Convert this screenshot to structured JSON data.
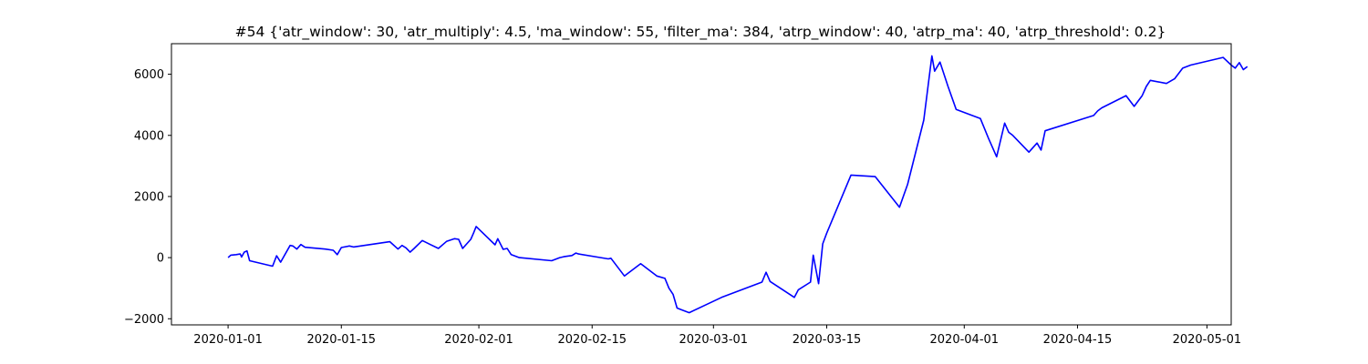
{
  "chart_data": {
    "type": "line",
    "title": "#54 {'atr_window': 30, 'atr_multiply': 4.5, 'ma_window': 55, 'filter_ma': 384, 'atrp_window': 40, 'atrp_ma': 40, 'atrp_threshold': 0.2}",
    "xlabel": "",
    "ylabel": "",
    "grid": false,
    "legend": "none",
    "xlim": [
      "2019-12-25",
      "2020-05-04"
    ],
    "ylim": [
      -2200,
      7000
    ],
    "x_ticks": [
      {
        "value": "2020-01-01",
        "label": "2020-01-01"
      },
      {
        "value": "2020-01-15",
        "label": "2020-01-15"
      },
      {
        "value": "2020-02-01",
        "label": "2020-02-01"
      },
      {
        "value": "2020-02-15",
        "label": "2020-02-15"
      },
      {
        "value": "2020-03-01",
        "label": "2020-03-01"
      },
      {
        "value": "2020-03-15",
        "label": "2020-03-15"
      },
      {
        "value": "2020-04-01",
        "label": "2020-04-01"
      },
      {
        "value": "2020-04-15",
        "label": "2020-04-15"
      },
      {
        "value": "2020-05-01",
        "label": "2020-05-01"
      }
    ],
    "y_ticks": [
      {
        "value": -2000,
        "label": "−2000"
      },
      {
        "value": 0,
        "label": "0"
      },
      {
        "value": 2000,
        "label": "2000"
      },
      {
        "value": 4000,
        "label": "4000"
      },
      {
        "value": 6000,
        "label": "6000"
      }
    ],
    "series": [
      {
        "color": "#0000ff",
        "x": [
          "2020-01-01",
          "2020-01-01T08:00",
          "2020-01-02",
          "2020-01-02T12:00",
          "2020-01-02T16:00",
          "2020-01-03",
          "2020-01-03T08:00",
          "2020-01-03T16:00",
          "2020-01-06T12:00",
          "2020-01-07",
          "2020-01-07T12:00",
          "2020-01-08T16:00",
          "2020-01-09",
          "2020-01-09T12:00",
          "2020-01-10",
          "2020-01-10T12:00",
          "2020-01-13",
          "2020-01-14",
          "2020-01-14T12:00",
          "2020-01-15",
          "2020-01-16",
          "2020-01-16T12:00",
          "2020-01-21",
          "2020-01-22",
          "2020-01-22T12:00",
          "2020-01-23",
          "2020-01-23T12:00",
          "2020-01-24",
          "2020-01-25",
          "2020-01-26",
          "2020-01-27",
          "2020-01-28",
          "2020-01-29",
          "2020-01-29T12:00",
          "2020-01-30",
          "2020-01-31",
          "2020-01-31T08:00",
          "2020-01-31T16:00",
          "2020-02-03",
          "2020-02-03T08:00",
          "2020-02-04",
          "2020-02-04T12:00",
          "2020-02-05",
          "2020-02-06",
          "2020-02-10",
          "2020-02-11",
          "2020-02-11T12:00",
          "2020-02-12",
          "2020-02-12T12:00",
          "2020-02-13",
          "2020-02-13T08:00",
          "2020-02-17",
          "2020-02-17T08:00",
          "2020-02-19",
          "2020-02-21",
          "2020-02-23",
          "2020-02-24",
          "2020-02-24T12:00",
          "2020-02-25",
          "2020-02-25T12:00",
          "2020-02-26",
          "2020-02-27",
          "2020-03-02",
          "2020-03-07",
          "2020-03-07T12:00",
          "2020-03-08",
          "2020-03-11",
          "2020-03-11T12:00",
          "2020-03-13",
          "2020-03-13T08:00",
          "2020-03-14",
          "2020-03-14T12:00",
          "2020-03-15",
          "2020-03-18",
          "2020-03-21",
          "2020-03-24",
          "2020-03-25",
          "2020-03-27",
          "2020-03-28",
          "2020-03-28T08:00",
          "2020-03-29",
          "2020-03-30",
          "2020-03-31",
          "2020-04-03",
          "2020-04-04",
          "2020-04-05",
          "2020-04-06",
          "2020-04-06T12:00",
          "2020-04-07",
          "2020-04-09",
          "2020-04-10",
          "2020-04-10T12:00",
          "2020-04-11",
          "2020-04-17",
          "2020-04-17T12:00",
          "2020-04-18",
          "2020-04-21",
          "2020-04-22",
          "2020-04-23",
          "2020-04-23T12:00",
          "2020-04-24",
          "2020-04-26",
          "2020-04-27",
          "2020-04-28",
          "2020-04-29",
          "2020-05-03",
          "2020-05-04",
          "2020-05-04T12:00",
          "2020-05-05",
          "2020-05-05T12:00",
          "2020-05-06"
        ],
        "y": [
          0,
          80,
          100,
          120,
          20,
          180,
          220,
          -100,
          -280,
          60,
          -150,
          400,
          380,
          280,
          430,
          340,
          280,
          240,
          100,
          330,
          380,
          350,
          520,
          280,
          400,
          320,
          180,
          300,
          560,
          430,
          300,
          530,
          620,
          600,
          300,
          600,
          800,
          1020,
          420,
          620,
          270,
          300,
          100,
          0,
          -100,
          0,
          30,
          50,
          70,
          150,
          120,
          -40,
          -20,
          -600,
          -200,
          -600,
          -680,
          -1000,
          -1200,
          -1650,
          -1700,
          -1800,
          -1300,
          -800,
          -480,
          -780,
          -1300,
          -1050,
          -800,
          80,
          -850,
          450,
          800,
          2700,
          2650,
          1650,
          2400,
          4500,
          6600,
          6100,
          6400,
          5600,
          4850,
          4550,
          3900,
          3300,
          4400,
          4100,
          4000,
          3450,
          3750,
          3520,
          4150,
          4650,
          4800,
          4900,
          5300,
          4950,
          5300,
          5600,
          5800,
          5700,
          5850,
          6200,
          6300,
          6550,
          6300,
          6200,
          6380,
          6150,
          6250
        ]
      }
    ]
  }
}
